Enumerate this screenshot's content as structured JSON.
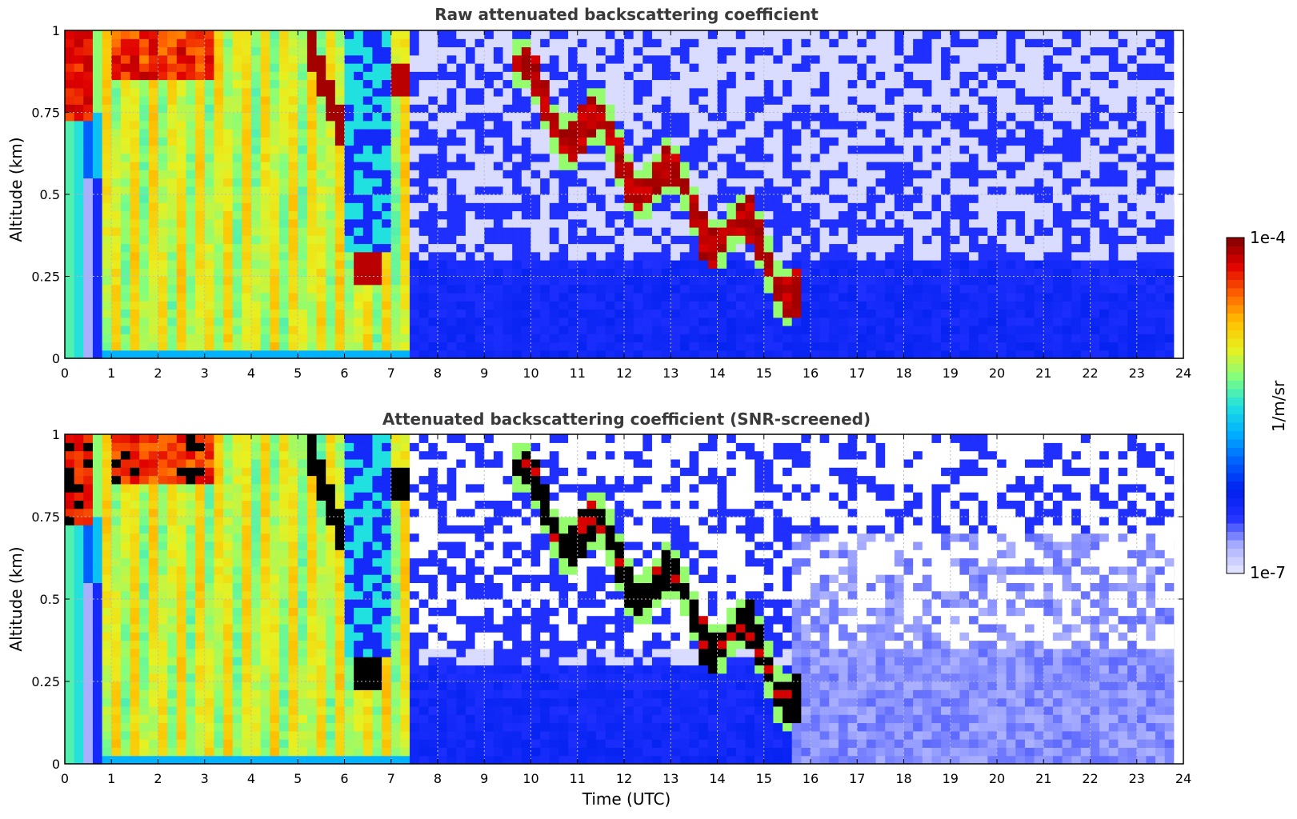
{
  "chart_data": [
    {
      "type": "heatmap",
      "title": "Raw attenuated backscattering coefficient",
      "ylabel": "Altitude (km)",
      "xlabel": "",
      "xlim": [
        0,
        24
      ],
      "ylim": [
        0,
        1
      ],
      "x_ticks": [
        "0",
        "1",
        "2",
        "3",
        "4",
        "5",
        "6",
        "7",
        "8",
        "9",
        "10",
        "11",
        "12",
        "13",
        "14",
        "15",
        "16",
        "17",
        "18",
        "19",
        "20",
        "21",
        "22",
        "23",
        "24"
      ],
      "y_ticks": [
        "0",
        "0.25",
        "0.5",
        "0.75",
        "1"
      ],
      "grid": true,
      "z_scale": "log",
      "regions": [
        {
          "t0": 0.0,
          "t1": 0.8,
          "desc": "aerosol yellow-green",
          "level": 0.55
        },
        {
          "t0": 0.8,
          "t1": 7.4,
          "desc": "dense low cloud / fog, yellow-orange, cloud tops red",
          "level": 0.7
        },
        {
          "t0": 7.4,
          "t1": 9.5,
          "desc": "clear, low blue background",
          "level": 0.12
        },
        {
          "t0": 9.5,
          "t1": 15.5,
          "desc": "descending cloud layer 0.9 km → 0.2 km",
          "level": 0.95
        },
        {
          "t0": 15.5,
          "t1": 23.8,
          "desc": "clear, noisy blue",
          "level": 0.1
        }
      ]
    },
    {
      "type": "heatmap",
      "title": "Attenuated backscattering coefficient (SNR-screened)",
      "ylabel": "Altitude (km)",
      "xlabel": "Time (UTC)",
      "xlim": [
        0,
        24
      ],
      "ylim": [
        0,
        1
      ],
      "x_ticks": [
        "0",
        "1",
        "2",
        "3",
        "4",
        "5",
        "6",
        "7",
        "8",
        "9",
        "10",
        "11",
        "12",
        "13",
        "14",
        "15",
        "16",
        "17",
        "18",
        "19",
        "20",
        "21",
        "22",
        "23",
        "24"
      ],
      "y_ticks": [
        "0",
        "0.25",
        "0.5",
        "0.75",
        "1"
      ],
      "grid": true,
      "z_scale": "log",
      "screened": "low-SNR pixels removed (white); saturated cloud cores black"
    }
  ],
  "colorbar": {
    "min_label": "1e-7",
    "max_label": "1e-4",
    "unit": "1/m/sr",
    "colors": [
      "#e8e8ff",
      "#aab0ff",
      "#2030ff",
      "#0020ee",
      "#0060ff",
      "#00b0ff",
      "#20e0e0",
      "#80ff80",
      "#e8f020",
      "#ffc000",
      "#ff6000",
      "#e00000",
      "#800000"
    ]
  }
}
